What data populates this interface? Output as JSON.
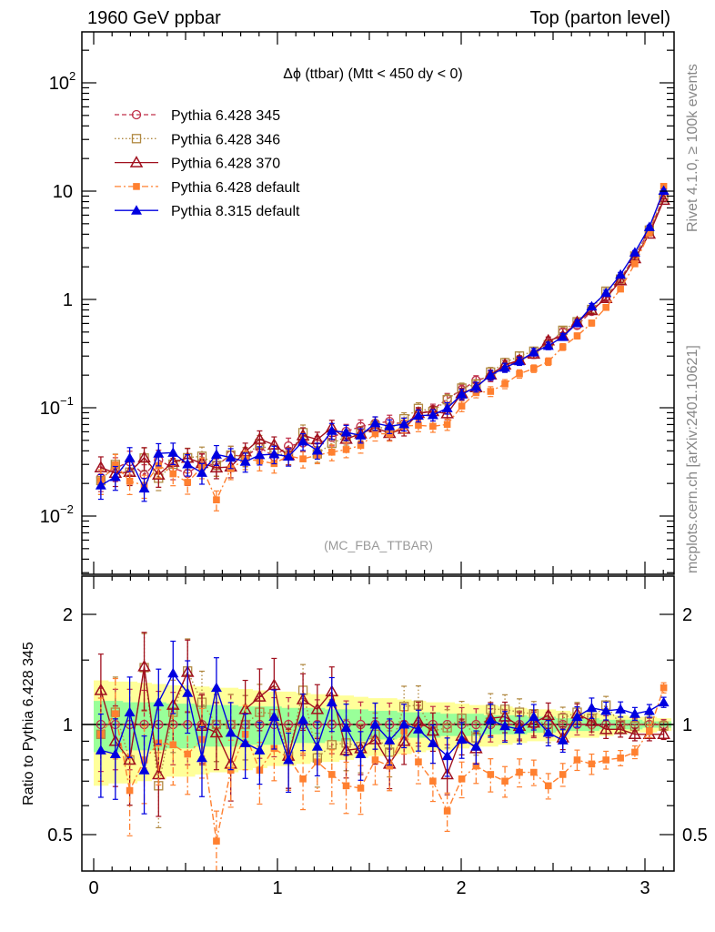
{
  "header": {
    "left": "1960 GeV ppbar",
    "right": "Top (parton level)"
  },
  "side_labels": {
    "rivet": "Rivet 4.1.0, ≥ 100k events",
    "mcplots": "mcplots.cern.ch [arXiv:2401.10621]"
  },
  "analysis_tag": "(MC_FBA_TTBAR)",
  "chart_data": {
    "type": "line",
    "title": "Δϕ (ttbar) (Mtt < 450 dy < 0)",
    "xlabel": "",
    "ylabel": "",
    "ratio_ylabel": "Ratio to Pythia 6.428 345",
    "xlim": [
      0,
      3.16
    ],
    "ylim": [
      0.0029,
      296
    ],
    "yscale": "log",
    "ratio_ylim": [
      0.4,
      2.5
    ],
    "ratio_yscale": "log",
    "legend_position": "top-left",
    "xticks": [
      "0",
      "1",
      "2",
      "3"
    ],
    "xtick_values": [
      0,
      1,
      2,
      3
    ],
    "yticks": [
      {
        "value": 100,
        "base": "10",
        "exp": "2"
      },
      {
        "value": 10,
        "base": "10",
        "exp": ""
      },
      {
        "value": 1,
        "base": "1",
        "exp": ""
      },
      {
        "value": 0.1,
        "base": "10",
        "exp": "−1"
      },
      {
        "value": 0.01,
        "base": "10",
        "exp": "−2"
      }
    ],
    "ratio_yticks": [
      {
        "value": 2,
        "label": "2"
      },
      {
        "value": 1,
        "label": "1"
      },
      {
        "value": 0.5,
        "label": "0.5"
      }
    ],
    "n_bins": 40,
    "x": [
      0.039,
      0.118,
      0.196,
      0.275,
      0.353,
      0.432,
      0.511,
      0.589,
      0.668,
      0.746,
      0.825,
      0.903,
      0.982,
      1.06,
      1.139,
      1.217,
      1.296,
      1.374,
      1.453,
      1.532,
      1.61,
      1.689,
      1.767,
      1.846,
      1.924,
      2.003,
      2.081,
      2.16,
      2.238,
      2.317,
      2.395,
      2.474,
      2.553,
      2.631,
      2.71,
      2.788,
      2.867,
      2.945,
      3.024,
      3.102
    ],
    "reference": "Pythia 6.428 345",
    "reference_values": [
      0.0226,
      0.0277,
      0.0318,
      0.024,
      0.0329,
      0.0279,
      0.0247,
      0.031,
      0.0294,
      0.0365,
      0.0357,
      0.0431,
      0.0355,
      0.0443,
      0.0475,
      0.0463,
      0.0533,
      0.0605,
      0.067,
      0.072,
      0.0746,
      0.0706,
      0.0872,
      0.0963,
      0.121,
      0.146,
      0.179,
      0.194,
      0.237,
      0.278,
      0.311,
      0.393,
      0.499,
      0.576,
      0.777,
      1.055,
      1.54,
      2.54,
      4.28,
      8.78
    ],
    "band_yellow_rel": [
      0.32,
      0.31,
      0.31,
      0.3,
      0.29,
      0.28,
      0.28,
      0.27,
      0.26,
      0.26,
      0.25,
      0.24,
      0.23,
      0.23,
      0.22,
      0.21,
      0.21,
      0.2,
      0.19,
      0.18,
      0.18,
      0.17,
      0.16,
      0.15,
      0.15,
      0.14,
      0.13,
      0.13,
      0.12,
      0.11,
      0.1,
      0.1,
      0.09,
      0.08,
      0.08,
      0.07,
      0.06,
      0.05,
      0.05,
      0.04
    ],
    "band_green_rel": [
      0.16,
      0.16,
      0.15,
      0.15,
      0.15,
      0.14,
      0.14,
      0.13,
      0.13,
      0.13,
      0.12,
      0.12,
      0.12,
      0.11,
      0.11,
      0.11,
      0.1,
      0.1,
      0.1,
      0.09,
      0.09,
      0.08,
      0.08,
      0.08,
      0.07,
      0.07,
      0.07,
      0.06,
      0.06,
      0.06,
      0.05,
      0.05,
      0.04,
      0.04,
      0.04,
      0.03,
      0.03,
      0.03,
      0.02,
      0.02
    ],
    "band_colors": {
      "yellow": "#ffff99",
      "green": "#99ff99"
    },
    "series": [
      {
        "name": "Pythia 6.428 345",
        "color": "#c0304a",
        "marker": "open-circle",
        "line": "dashed",
        "ratio": [
          1,
          1,
          1,
          1,
          1,
          1,
          1,
          1,
          1,
          1,
          1,
          1,
          1,
          1,
          1,
          1,
          1,
          1,
          1,
          1,
          1,
          1,
          1,
          1,
          1,
          1,
          1,
          1,
          1,
          1,
          1,
          1,
          1,
          1,
          1,
          1,
          1,
          1,
          1,
          1
        ]
      },
      {
        "name": "Pythia 6.428 346",
        "color": "#b08840",
        "marker": "open-square",
        "line": "dotted",
        "ratio": [
          0.94,
          1.08,
          0.8,
          1.43,
          0.68,
          1.08,
          1.4,
          1.15,
          1.0,
          1.0,
          1.0,
          1.08,
          1.07,
          0.82,
          1.24,
          0.81,
          0.88,
          0.89,
          0.87,
          0.94,
          0.84,
          1.12,
          1.13,
          0.96,
          0.98,
          1.04,
          0.92,
          1.1,
          1.1,
          1.08,
          1.07,
          0.97,
          1.04,
          1.08,
          1.04,
          1.13,
          1.0,
          0.99,
          1.02,
          0.99
        ]
      },
      {
        "name": "Pythia 6.428 370",
        "color": "#a0101e",
        "marker": "open-triangle",
        "line": "solid",
        "ratio": [
          1.24,
          0.9,
          0.8,
          1.44,
          0.73,
          1.13,
          1.39,
          0.99,
          0.95,
          0.78,
          1.1,
          1.19,
          1.28,
          0.82,
          1.17,
          1.1,
          1.23,
          0.85,
          0.86,
          0.91,
          0.78,
          0.9,
          1.02,
          0.96,
          0.73,
          0.93,
          0.86,
          1.04,
          1.05,
          0.99,
          1.01,
          1.06,
          0.92,
          1.07,
          1.02,
          0.97,
          0.97,
          0.94,
          0.94,
          0.94
        ]
      },
      {
        "name": "Pythia 6.428 default",
        "color": "#ff8030",
        "marker": "filled-square",
        "line": "dashdot",
        "ratio": [
          0.94,
          1.07,
          0.66,
          0.8,
          0.89,
          0.88,
          0.83,
          0.91,
          0.48,
          0.75,
          0.94,
          0.75,
          0.86,
          0.81,
          0.71,
          0.79,
          0.73,
          0.68,
          0.67,
          0.8,
          0.77,
          0.96,
          0.79,
          0.7,
          0.58,
          0.71,
          0.77,
          0.73,
          0.7,
          0.74,
          0.74,
          0.68,
          0.73,
          0.8,
          0.78,
          0.8,
          0.81,
          0.84,
          0.96,
          1.26
        ]
      },
      {
        "name": "Pythia 8.315 default",
        "color": "#0000e0",
        "marker": "filled-triangle",
        "line": "solid",
        "ratio": [
          0.85,
          0.83,
          1.08,
          0.75,
          1.15,
          1.38,
          1.22,
          0.81,
          1.26,
          0.95,
          0.89,
          0.85,
          1.05,
          0.8,
          1.03,
          0.87,
          1.15,
          0.98,
          0.83,
          1.0,
          0.905,
          1.0,
          0.97,
          0.89,
          0.82,
          0.91,
          0.87,
          1.03,
          0.99,
          0.97,
          1.05,
          0.95,
          0.905,
          1.05,
          1.11,
          1.09,
          1.1,
          1.07,
          1.09,
          1.15
        ]
      }
    ]
  }
}
